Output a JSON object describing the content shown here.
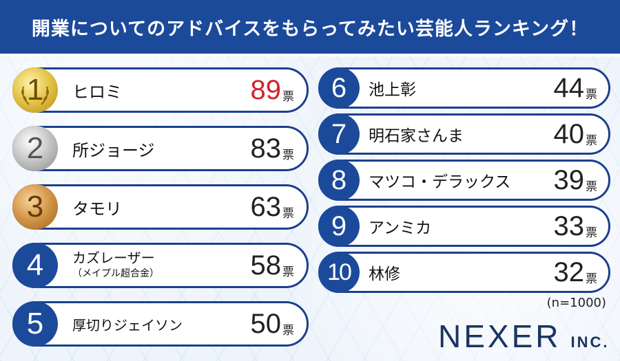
{
  "title": "開業についてのアドバイスをもらってみたい芸能人ランキング！",
  "chart_data": {
    "type": "table",
    "unit": "票",
    "rankings": [
      {
        "rank": "1",
        "name": "ヒロミ",
        "votes": 89
      },
      {
        "rank": "2",
        "name": "所ジョージ",
        "votes": 83
      },
      {
        "rank": "3",
        "name": "タモリ",
        "votes": 63
      },
      {
        "rank": "4",
        "name": "カズレーザー",
        "sub": "（メイプル超合金）",
        "votes": 58
      },
      {
        "rank": "5",
        "name": "厚切りジェイソン",
        "votes": 50
      },
      {
        "rank": "6",
        "name": "池上彰",
        "votes": 44
      },
      {
        "rank": "7",
        "name": "明石家さんま",
        "votes": 40
      },
      {
        "rank": "8",
        "name": "マツコ・デラックス",
        "votes": 39
      },
      {
        "rank": "9",
        "name": "アンミカ",
        "votes": 33
      },
      {
        "rank": "10",
        "name": "林修",
        "votes": 32
      }
    ]
  },
  "note": "(n=1000)",
  "logo": {
    "name": "NEXER",
    "suffix": "INC."
  },
  "colors": {
    "header": "#1c4a9a",
    "border": "#1c3f8c",
    "top_votes": "#d4202c"
  }
}
